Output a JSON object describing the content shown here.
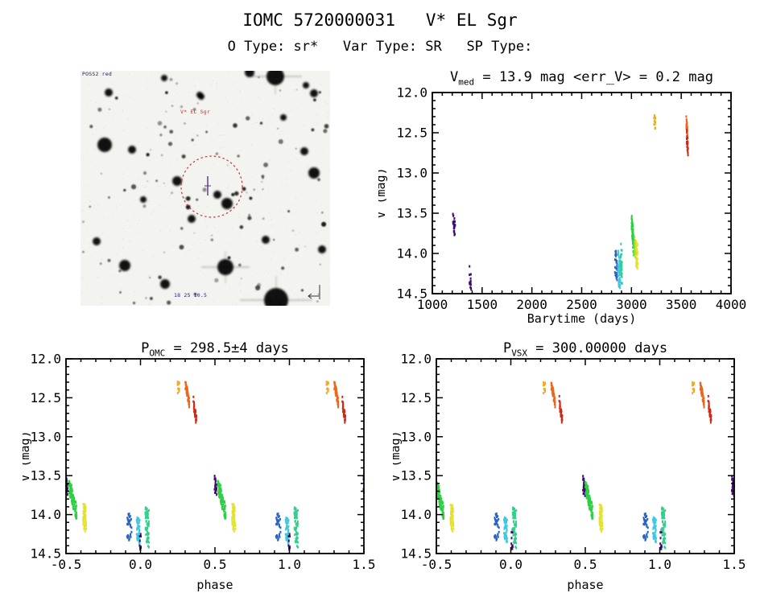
{
  "header": {
    "title": "IOMC 5720000031   V* EL Sgr",
    "subtitle": "O Type: sr*   Var Type: SR   SP Type:"
  },
  "finder": {
    "survey_label": "POSS2 red",
    "target_label": "V* EL Sgr",
    "bottom_label": "18 25 10.5",
    "circle_color": "#cc3333",
    "marker_color": "#5b2d8e"
  },
  "colors": {
    "purple": "#3f0d6d",
    "blue": "#2a62c4",
    "cyan": "#3ec9e0",
    "seagreen": "#31cf8c",
    "green": "#2fcf45",
    "ygreen": "#a8d622",
    "yellow": "#e2e22e",
    "amber": "#eeaa22",
    "orange": "#ea671c",
    "red": "#cd2917",
    "frame": "#000000"
  },
  "chart_data": [
    {
      "id": "time",
      "type": "scatter",
      "title_pre": "V",
      "title_sub": "med",
      "title_post": " = 13.9 mag <err_V> = 0.2 mag",
      "xlabel": "Barytime (days)",
      "ylabel": "V (mag)",
      "xlim": [
        1000,
        4000
      ],
      "ylim": [
        12.0,
        14.5
      ],
      "y_inverted": true,
      "xticks": [
        1000,
        1500,
        2000,
        2500,
        3000,
        3500,
        4000
      ],
      "yticks": [
        12.0,
        12.5,
        13.0,
        13.5,
        14.0,
        14.5
      ],
      "x_minor_step": 100,
      "y_minor_step": 0.1,
      "x_decimals": 0,
      "y_decimals": 1,
      "phase_folded": false,
      "clusters": [
        {
          "x": 1218,
          "dx": 12,
          "v1": 13.48,
          "v2": 13.82,
          "n": 26,
          "color": "purple",
          "slant": 0.35
        },
        {
          "x": 1382,
          "dx": 9,
          "v1": 14.08,
          "v2": 14.46,
          "n": 14,
          "color": "purple",
          "slant": 0.2
        },
        {
          "x": 2846,
          "dx": 13,
          "v1": 13.94,
          "v2": 14.36,
          "n": 30,
          "color": "blue",
          "slant": 0.15
        },
        {
          "x": 2876,
          "dx": 12,
          "v1": 13.96,
          "v2": 14.45,
          "n": 55,
          "color": "cyan",
          "slant": 0.15
        },
        {
          "x": 2898,
          "dx": 8,
          "v1": 13.86,
          "v2": 14.4,
          "n": 28,
          "color": "seagreen",
          "slant": 0.15
        },
        {
          "x": 3012,
          "dx": 11,
          "v1": 13.48,
          "v2": 14.02,
          "n": 70,
          "color": "green",
          "slant": 0.55
        },
        {
          "x": 3036,
          "dx": 8,
          "v1": 13.76,
          "v2": 14.1,
          "n": 30,
          "color": "ygreen",
          "slant": 0.3
        },
        {
          "x": 3054,
          "dx": 8,
          "v1": 13.84,
          "v2": 14.2,
          "n": 48,
          "color": "yellow",
          "slant": 0.15
        },
        {
          "x": 3234,
          "dx": 7,
          "v1": 12.27,
          "v2": 12.47,
          "n": 16,
          "color": "amber",
          "slant": 0.2
        },
        {
          "x": 3556,
          "dx": 7,
          "v1": 12.26,
          "v2": 12.58,
          "n": 32,
          "color": "orange",
          "slant": 0.55
        },
        {
          "x": 3562,
          "dx": 7,
          "v1": 12.44,
          "v2": 12.86,
          "n": 30,
          "color": "red",
          "slant": 0.55
        }
      ]
    },
    {
      "id": "omc",
      "type": "scatter",
      "title_pre": "P",
      "title_sub": "OMC",
      "title_post": " = 298.5±4 days",
      "xlabel": "phase",
      "ylabel": "V (mag)",
      "xlim": [
        -0.5,
        1.5
      ],
      "ylim": [
        12.0,
        14.5
      ],
      "y_inverted": true,
      "xticks": [
        -0.5,
        0.0,
        0.5,
        1.0,
        1.5
      ],
      "yticks": [
        12.0,
        12.5,
        13.0,
        13.5,
        14.0,
        14.5
      ],
      "x_minor_step": 0.1,
      "y_minor_step": 0.1,
      "x_decimals": 1,
      "y_decimals": 1,
      "phase_folded": true,
      "clusters": [
        {
          "x": 0.505,
          "dx": 0.008,
          "v1": 13.48,
          "v2": 13.82,
          "n": 24,
          "color": "purple",
          "slant": 0.3
        },
        {
          "x": 0.545,
          "dx": 0.027,
          "v1": 13.5,
          "v2": 14.08,
          "n": 95,
          "color": "green",
          "slant": 0.65
        },
        {
          "x": 0.625,
          "dx": 0.01,
          "v1": 13.84,
          "v2": 14.22,
          "n": 55,
          "color": "yellow",
          "slant": 0.15
        },
        {
          "x": 0.925,
          "dx": 0.016,
          "v1": 13.94,
          "v2": 14.36,
          "n": 30,
          "color": "blue",
          "slant": 0.15
        },
        {
          "x": 0.985,
          "dx": 0.011,
          "v1": 14.0,
          "v2": 14.4,
          "n": 45,
          "color": "cyan",
          "slant": 0.15
        },
        {
          "x": 0.998,
          "dx": 0.005,
          "v1": 14.22,
          "v2": 14.47,
          "n": 10,
          "color": "purple",
          "slant": 0.2
        },
        {
          "x": 0.045,
          "dx": 0.012,
          "v1": 13.86,
          "v2": 14.44,
          "n": 60,
          "color": "seagreen",
          "slant": 0.15
        },
        {
          "x": 0.255,
          "dx": 0.007,
          "v1": 12.27,
          "v2": 12.47,
          "n": 16,
          "color": "amber",
          "slant": 0.2
        },
        {
          "x": 0.315,
          "dx": 0.014,
          "v1": 12.27,
          "v2": 12.63,
          "n": 50,
          "color": "orange",
          "slant": 0.65
        },
        {
          "x": 0.365,
          "dx": 0.011,
          "v1": 12.47,
          "v2": 12.86,
          "n": 32,
          "color": "red",
          "slant": 0.65
        }
      ]
    },
    {
      "id": "vsx",
      "type": "scatter",
      "title_pre": "P",
      "title_sub": "VSX",
      "title_post": " = 300.00000 days",
      "xlabel": "phase",
      "ylabel": "V (mag)",
      "xlim": [
        -0.5,
        1.5
      ],
      "ylim": [
        12.0,
        14.5
      ],
      "y_inverted": true,
      "xticks": [
        -0.5,
        0.0,
        0.5,
        1.0,
        1.5
      ],
      "yticks": [
        12.0,
        12.5,
        13.0,
        13.5,
        14.0,
        14.5
      ],
      "x_minor_step": 0.1,
      "y_minor_step": 0.1,
      "x_decimals": 1,
      "y_decimals": 1,
      "phase_folded": true,
      "clusters": [
        {
          "x": 0.492,
          "dx": 0.008,
          "v1": 13.48,
          "v2": 13.84,
          "n": 24,
          "color": "purple",
          "slant": 0.3
        },
        {
          "x": 0.525,
          "dx": 0.025,
          "v1": 13.52,
          "v2": 14.08,
          "n": 95,
          "color": "green",
          "slant": 0.65
        },
        {
          "x": 0.605,
          "dx": 0.01,
          "v1": 13.85,
          "v2": 14.22,
          "n": 55,
          "color": "yellow",
          "slant": 0.15
        },
        {
          "x": 0.905,
          "dx": 0.016,
          "v1": 13.94,
          "v2": 14.36,
          "n": 30,
          "color": "blue",
          "slant": 0.15
        },
        {
          "x": 0.965,
          "dx": 0.011,
          "v1": 14.0,
          "v2": 14.38,
          "n": 45,
          "color": "cyan",
          "slant": 0.15
        },
        {
          "x": 0.008,
          "dx": 0.005,
          "v1": 14.15,
          "v2": 14.47,
          "n": 10,
          "color": "purple",
          "slant": 0.2
        },
        {
          "x": 0.025,
          "dx": 0.012,
          "v1": 13.86,
          "v2": 14.45,
          "n": 60,
          "color": "seagreen",
          "slant": 0.15
        },
        {
          "x": 0.225,
          "dx": 0.007,
          "v1": 12.28,
          "v2": 12.47,
          "n": 16,
          "color": "amber",
          "slant": 0.2
        },
        {
          "x": 0.285,
          "dx": 0.014,
          "v1": 12.28,
          "v2": 12.63,
          "n": 50,
          "color": "orange",
          "slant": 0.65
        },
        {
          "x": 0.335,
          "dx": 0.011,
          "v1": 12.46,
          "v2": 12.86,
          "n": 32,
          "color": "red",
          "slant": 0.65
        }
      ]
    }
  ]
}
